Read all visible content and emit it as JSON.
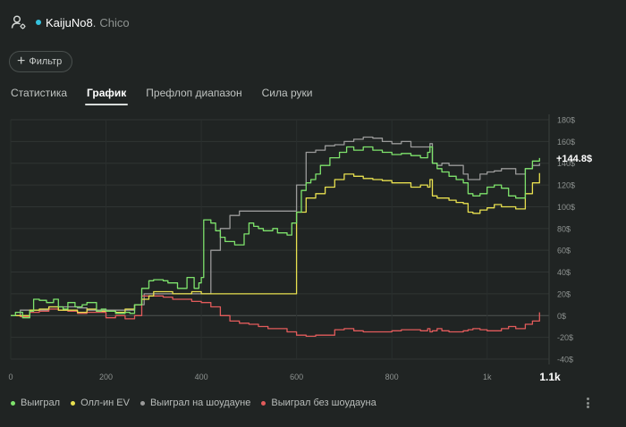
{
  "header": {
    "player_name": "KaijuNo8",
    "separator": ".",
    "opponent_name": "Chico",
    "status_color": "#35c3df",
    "icon": "user-settings-icon"
  },
  "filter": {
    "label": "Фильтр",
    "icon": "plus-icon"
  },
  "tabs": [
    {
      "label": "Статистика",
      "active": false
    },
    {
      "label": "График",
      "active": true
    },
    {
      "label": "Префлоп диапазон",
      "active": false
    },
    {
      "label": "Сила руки",
      "active": false
    }
  ],
  "legend": [
    {
      "label": "Выиграл",
      "color": "#7ee36c"
    },
    {
      "label": "Олл-ин EV",
      "color": "#e8e04f"
    },
    {
      "label": "Выиграл на шоудауне",
      "color": "#9a9a9a"
    },
    {
      "label": "Выиграл без шоудауна",
      "color": "#e25b5b"
    }
  ],
  "chart_data": {
    "type": "line",
    "x_ticks": [
      "0",
      "200",
      "400",
      "600",
      "800",
      "1k"
    ],
    "x_end_label": "1.1k",
    "y_ticks": [
      "180$",
      "160$",
      "140$",
      "120$",
      "100$",
      "80$",
      "60$",
      "40$",
      "20$",
      "0$",
      "-20$",
      "-40$"
    ],
    "xlim": [
      0,
      1130
    ],
    "ylim": [
      -40,
      180
    ],
    "end_value_label": "+144.8$",
    "grid": true,
    "legend_position": "bottom-left",
    "series": [
      {
        "name": "Выиграл",
        "color": "#7ee36c",
        "points": [
          [
            0,
            0
          ],
          [
            10,
            3
          ],
          [
            25,
            -2
          ],
          [
            40,
            4
          ],
          [
            48,
            15
          ],
          [
            60,
            14
          ],
          [
            75,
            12
          ],
          [
            90,
            15
          ],
          [
            100,
            8
          ],
          [
            110,
            6
          ],
          [
            120,
            12
          ],
          [
            135,
            8
          ],
          [
            150,
            10
          ],
          [
            160,
            12
          ],
          [
            180,
            4
          ],
          [
            190,
            6
          ],
          [
            200,
            4
          ],
          [
            220,
            2
          ],
          [
            240,
            3
          ],
          [
            250,
            2
          ],
          [
            260,
            10
          ],
          [
            275,
            25
          ],
          [
            290,
            32
          ],
          [
            300,
            33
          ],
          [
            320,
            32
          ],
          [
            330,
            30
          ],
          [
            350,
            25
          ],
          [
            370,
            35
          ],
          [
            385,
            25
          ],
          [
            395,
            30
          ],
          [
            400,
            35
          ],
          [
            405,
            88
          ],
          [
            420,
            85
          ],
          [
            430,
            78
          ],
          [
            440,
            72
          ],
          [
            450,
            68
          ],
          [
            470,
            65
          ],
          [
            490,
            75
          ],
          [
            500,
            85
          ],
          [
            510,
            82
          ],
          [
            520,
            80
          ],
          [
            530,
            78
          ],
          [
            550,
            80
          ],
          [
            560,
            76
          ],
          [
            570,
            76
          ],
          [
            580,
            74
          ],
          [
            590,
            85
          ],
          [
            600,
            95
          ],
          [
            610,
            115
          ],
          [
            620,
            122
          ],
          [
            630,
            125
          ],
          [
            640,
            130
          ],
          [
            650,
            138
          ],
          [
            670,
            145
          ],
          [
            690,
            150
          ],
          [
            705,
            155
          ],
          [
            720,
            152
          ],
          [
            740,
            155
          ],
          [
            760,
            152
          ],
          [
            780,
            150
          ],
          [
            800,
            148
          ],
          [
            820,
            149
          ],
          [
            840,
            147
          ],
          [
            860,
            145
          ],
          [
            875,
            150
          ],
          [
            880,
            155
          ],
          [
            885,
            140
          ],
          [
            895,
            135
          ],
          [
            905,
            132
          ],
          [
            920,
            128
          ],
          [
            935,
            125
          ],
          [
            950,
            122
          ],
          [
            960,
            112
          ],
          [
            970,
            110
          ],
          [
            985,
            112
          ],
          [
            1000,
            118
          ],
          [
            1015,
            120
          ],
          [
            1030,
            117
          ],
          [
            1045,
            110
          ],
          [
            1060,
            108
          ],
          [
            1080,
            135
          ],
          [
            1095,
            142
          ],
          [
            1110,
            144.8
          ]
        ]
      },
      {
        "name": "Олл-ин EV",
        "color": "#e8e04f",
        "points": [
          [
            0,
            0
          ],
          [
            20,
            0
          ],
          [
            40,
            5
          ],
          [
            60,
            6
          ],
          [
            80,
            8
          ],
          [
            100,
            5
          ],
          [
            120,
            5
          ],
          [
            140,
            3
          ],
          [
            160,
            6
          ],
          [
            180,
            4
          ],
          [
            200,
            4
          ],
          [
            220,
            3
          ],
          [
            240,
            6
          ],
          [
            260,
            10
          ],
          [
            275,
            15
          ],
          [
            290,
            18
          ],
          [
            300,
            22
          ],
          [
            320,
            22
          ],
          [
            340,
            20
          ],
          [
            360,
            20
          ],
          [
            380,
            22
          ],
          [
            400,
            20
          ],
          [
            600,
            95
          ],
          [
            620,
            108
          ],
          [
            640,
            112
          ],
          [
            660,
            118
          ],
          [
            680,
            125
          ],
          [
            700,
            130
          ],
          [
            720,
            128
          ],
          [
            740,
            126
          ],
          [
            760,
            125
          ],
          [
            780,
            124
          ],
          [
            800,
            122
          ],
          [
            820,
            122
          ],
          [
            840,
            118
          ],
          [
            860,
            120
          ],
          [
            875,
            118
          ],
          [
            880,
            125
          ],
          [
            885,
            110
          ],
          [
            895,
            108
          ],
          [
            905,
            108
          ],
          [
            920,
            106
          ],
          [
            935,
            104
          ],
          [
            950,
            103
          ],
          [
            960,
            95
          ],
          [
            970,
            94
          ],
          [
            985,
            97
          ],
          [
            1000,
            99
          ],
          [
            1015,
            102
          ],
          [
            1030,
            100
          ],
          [
            1045,
            100
          ],
          [
            1060,
            98
          ],
          [
            1080,
            112
          ],
          [
            1095,
            122
          ],
          [
            1110,
            131
          ]
        ]
      },
      {
        "name": "Выиграл на шоудауне",
        "color": "#9a9a9a",
        "points": [
          [
            0,
            0
          ],
          [
            20,
            5
          ],
          [
            40,
            5
          ],
          [
            60,
            5
          ],
          [
            80,
            8
          ],
          [
            100,
            8
          ],
          [
            120,
            8
          ],
          [
            140,
            7
          ],
          [
            160,
            5
          ],
          [
            180,
            5
          ],
          [
            200,
            5
          ],
          [
            220,
            5
          ],
          [
            240,
            5
          ],
          [
            260,
            10
          ],
          [
            280,
            20
          ],
          [
            300,
            20
          ],
          [
            320,
            20
          ],
          [
            340,
            20
          ],
          [
            360,
            20
          ],
          [
            380,
            20
          ],
          [
            400,
            20
          ],
          [
            420,
            60
          ],
          [
            440,
            80
          ],
          [
            460,
            92
          ],
          [
            480,
            96
          ],
          [
            500,
            96
          ],
          [
            520,
            96
          ],
          [
            540,
            96
          ],
          [
            560,
            96
          ],
          [
            580,
            96
          ],
          [
            600,
            120
          ],
          [
            620,
            150
          ],
          [
            640,
            152
          ],
          [
            660,
            156
          ],
          [
            680,
            157
          ],
          [
            700,
            160
          ],
          [
            720,
            162
          ],
          [
            740,
            164
          ],
          [
            760,
            163
          ],
          [
            780,
            160
          ],
          [
            800,
            158
          ],
          [
            820,
            160
          ],
          [
            840,
            155
          ],
          [
            860,
            155
          ],
          [
            875,
            155
          ],
          [
            880,
            158
          ],
          [
            885,
            140
          ],
          [
            895,
            138
          ],
          [
            905,
            140
          ],
          [
            920,
            138
          ],
          [
            935,
            138
          ],
          [
            950,
            130
          ],
          [
            960,
            125
          ],
          [
            970,
            125
          ],
          [
            985,
            130
          ],
          [
            1000,
            132
          ],
          [
            1015,
            133
          ],
          [
            1030,
            135
          ],
          [
            1045,
            135
          ],
          [
            1060,
            130
          ],
          [
            1080,
            135
          ],
          [
            1095,
            138
          ],
          [
            1110,
            140
          ]
        ]
      },
      {
        "name": "Выиграл без шоудауна",
        "color": "#e25b5b",
        "points": [
          [
            0,
            0
          ],
          [
            20,
            -1
          ],
          [
            40,
            3
          ],
          [
            60,
            4
          ],
          [
            80,
            6
          ],
          [
            100,
            5
          ],
          [
            120,
            4
          ],
          [
            140,
            2
          ],
          [
            160,
            3
          ],
          [
            180,
            3
          ],
          [
            200,
            -2
          ],
          [
            220,
            0
          ],
          [
            240,
            -3
          ],
          [
            260,
            0
          ],
          [
            275,
            18
          ],
          [
            290,
            18
          ],
          [
            300,
            18
          ],
          [
            320,
            17
          ],
          [
            340,
            15
          ],
          [
            360,
            15
          ],
          [
            380,
            13
          ],
          [
            400,
            12
          ],
          [
            420,
            8
          ],
          [
            440,
            0
          ],
          [
            460,
            -5
          ],
          [
            480,
            -7
          ],
          [
            500,
            -8
          ],
          [
            520,
            -10
          ],
          [
            540,
            -12
          ],
          [
            560,
            -12
          ],
          [
            580,
            -15
          ],
          [
            600,
            -18
          ],
          [
            620,
            -19
          ],
          [
            640,
            -18
          ],
          [
            660,
            -18
          ],
          [
            680,
            -13
          ],
          [
            700,
            -12
          ],
          [
            720,
            -14
          ],
          [
            740,
            -15
          ],
          [
            760,
            -15
          ],
          [
            780,
            -15
          ],
          [
            800,
            -14
          ],
          [
            820,
            -13
          ],
          [
            840,
            -13
          ],
          [
            860,
            -14
          ],
          [
            875,
            -12
          ],
          [
            880,
            -15
          ],
          [
            885,
            -14
          ],
          [
            895,
            -12
          ],
          [
            905,
            -14
          ],
          [
            920,
            -15
          ],
          [
            935,
            -15
          ],
          [
            950,
            -14
          ],
          [
            960,
            -13
          ],
          [
            970,
            -12
          ],
          [
            985,
            -13
          ],
          [
            1000,
            -14
          ],
          [
            1015,
            -14
          ],
          [
            1030,
            -12
          ],
          [
            1045,
            -10
          ],
          [
            1060,
            -12
          ],
          [
            1080,
            -8
          ],
          [
            1095,
            -5
          ],
          [
            1110,
            3
          ]
        ]
      }
    ]
  }
}
